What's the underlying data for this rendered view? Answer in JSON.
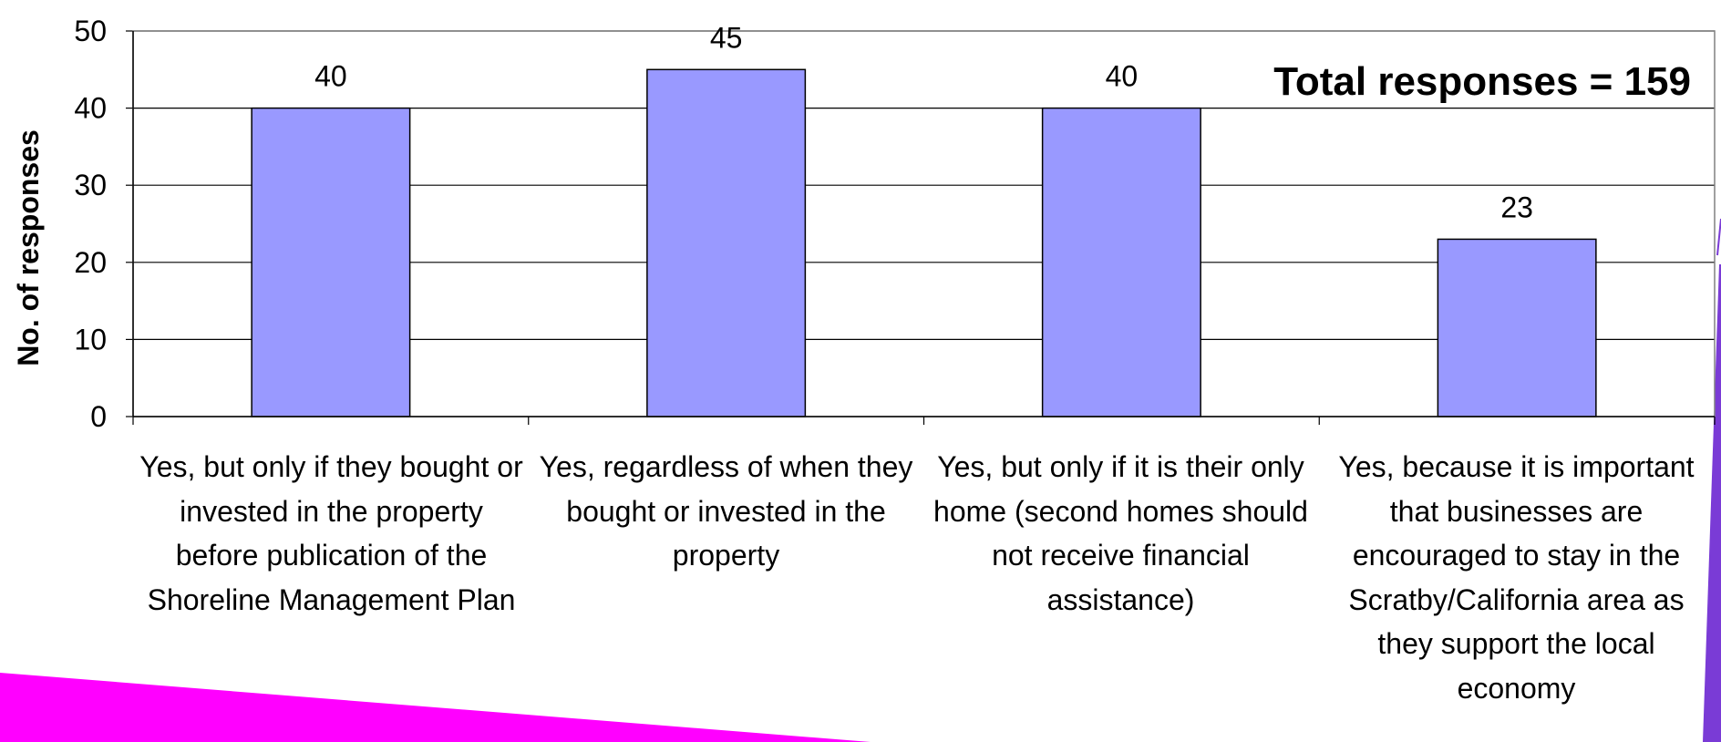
{
  "chart_data": {
    "type": "bar",
    "categories": [
      "Yes, but only if they bought or invested in the property before publication of the Shoreline Management Plan",
      "Yes, regardless of when they bought or invested in the property",
      "Yes, but only if it is their only home (second homes should not receive financial assistance)",
      "Yes, because it is important that businesses are encouraged to stay in the Scratby/California area as they support the local economy"
    ],
    "values": [
      40,
      45,
      40,
      23
    ],
    "data_labels": [
      "40",
      "45",
      "40",
      "23"
    ],
    "title": "",
    "xlabel": "",
    "ylabel": "No. of responses",
    "ylim": [
      0,
      50
    ],
    "yticks": [
      0,
      10,
      20,
      30,
      40,
      50
    ],
    "annotation": "Total responses = 159",
    "grid": true,
    "legend": "none",
    "bar_color": "#9999ff"
  },
  "decoration_colors": {
    "magenta": "#ff00ff",
    "purple": "#7a3bd6"
  }
}
